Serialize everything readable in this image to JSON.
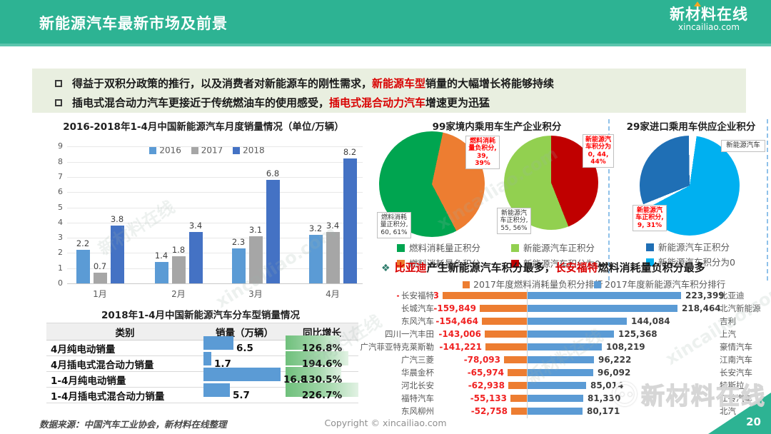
{
  "header": {
    "title": "新能源汽车最新市场及前景",
    "logo_name": "新材料在线",
    "logo_domain": "xincailiao.com"
  },
  "bullets": [
    {
      "pre": "得益于双积分政策的推行，以及消费者对新能源车的刚性需求，",
      "highlight": "新能源车型",
      "post": "销量的大幅增长将能够持续"
    },
    {
      "pre": "插电式混合动力汽车更接近于传统燃油车的使用感受，",
      "highlight": "插电式混合动力汽车",
      "post": "增速更为迅猛"
    }
  ],
  "monthly_chart": {
    "title": "2016-2018年1-4月中国新能源汽车月度销量情况（单位/万辆）",
    "categories": [
      "1月",
      "2月",
      "3月",
      "4月"
    ],
    "series": [
      {
        "name": "2016",
        "color": "#5b9bd5",
        "values": [
          2.2,
          1.4,
          2.3,
          3.2
        ]
      },
      {
        "name": "2017",
        "color": "#a6a6a6",
        "values": [
          0.7,
          1.8,
          3.1,
          3.4
        ]
      },
      {
        "name": "2018",
        "color": "#4472c4",
        "values": [
          3.8,
          3.4,
          6.8,
          8.2
        ]
      }
    ],
    "y_ticks": [
      0,
      1,
      2,
      3,
      4,
      5,
      6,
      7,
      8,
      9
    ]
  },
  "domestic_pies": {
    "title": "99家境内乘用车生产企业积分",
    "fuel_pie": {
      "segments": [
        {
          "label": "燃料消耗量正积分",
          "value": 60,
          "pct": 61,
          "color": "#00a550"
        },
        {
          "label": "燃料消耗量负积分",
          "value": 39,
          "pct": 39,
          "color": "#ed7d31"
        }
      ],
      "callout_neg": "燃料消耗\n量负积分,\n39, 39%",
      "callout_pos": "燃料消耗\n量正积分,\n60, 61%"
    },
    "nev_pie": {
      "segments": [
        {
          "label": "新能源汽车正积分",
          "value": 55,
          "pct": 56,
          "color": "#92d050"
        },
        {
          "label": "新能源汽车积分为0",
          "value": 44,
          "pct": 44,
          "color": "#c00000"
        }
      ],
      "callout_zero": "新能源汽\n车积分为\n0, 44,\n44%",
      "callout_pos": "新能源汽\n车正积分,\n55, 56%"
    },
    "legend": [
      "燃料消耗量正积分",
      "燃料消耗量负积分",
      "新能源汽车正积分",
      "新能源汽车积分为0"
    ]
  },
  "import_pie": {
    "title": "29家进口乘用车供应企业积分",
    "segments": [
      {
        "label": "新能源汽车正积分",
        "value": 9,
        "pct": 31,
        "color": "#1f6fb5"
      },
      {
        "label": "新能源汽车积分为0",
        "pct": 69,
        "color": "#00b0f0"
      }
    ],
    "callout_pos": "新能源汽\n车正积分,\n9, 31%",
    "tag": "新能源汽车",
    "legend": [
      "新能源汽车正积分",
      "新能源汽车积分为0"
    ]
  },
  "type_table": {
    "title": "2018年1-4月中国新能源汽车分车型销量情况",
    "headers": [
      "类别",
      "销量（万辆）",
      "同比增长"
    ],
    "rows": [
      {
        "label": "4月纯电动销量",
        "sales": "6.5",
        "growth": "126.8%"
      },
      {
        "label": "4月插电式混合动力销量",
        "sales": "1.7",
        "growth": "194.6%"
      },
      {
        "label": "1-4月纯电动销量",
        "sales": "16.8",
        "growth": "130.5%"
      },
      {
        "label": "1-4月插电式混合动力销量",
        "sales": "5.7",
        "growth": "226.7%"
      }
    ]
  },
  "headline": {
    "marker": "❖",
    "red1": "比亚迪",
    "mid": "产生新能源汽车积分最多，",
    "red2": "长安福特",
    "post": "燃料消耗量负积分最多"
  },
  "tornado": {
    "legend_left": "2017年度燃料消耗量负积分排行",
    "legend_right": "2017年度新能源汽车积分排行",
    "left_color": "#ed7d31",
    "right_color": "#5b9bd5",
    "rows": [
      {
        "left_label": "长安福特",
        "left_value": "-287,823",
        "right_value": "223,399",
        "right_label": "比亚迪"
      },
      {
        "left_label": "长城汽车",
        "left_value": "-159,849",
        "right_value": "218,464",
        "right_label": "北汽新能源"
      },
      {
        "left_label": "东风汽车",
        "left_value": "-154,464",
        "right_value": "144,084",
        "right_label": "吉利"
      },
      {
        "left_label": "四川一汽丰田",
        "left_value": "-143,006",
        "right_value": "125,368",
        "right_label": "上汽"
      },
      {
        "left_label": "广汽菲亚特克莱斯勒",
        "left_value": "-141,221",
        "right_value": "108,219",
        "right_label": "豪情汽车"
      },
      {
        "left_label": "广汽三菱",
        "left_value": "-78,093",
        "right_value": "96,222",
        "right_label": "江南汽车"
      },
      {
        "left_label": "华晨金杯",
        "left_value": "-65,974",
        "right_value": "96,092",
        "right_label": "长安汽车"
      },
      {
        "left_label": "河北长安",
        "left_value": "-62,938",
        "right_value": "85,014",
        "right_label": "特斯拉"
      },
      {
        "left_label": "福特汽车",
        "left_value": "-55,133",
        "right_value": "81,330",
        "right_label": "江铃汽车"
      },
      {
        "left_label": "东风柳州",
        "left_value": "-52,758",
        "right_value": "80,171",
        "right_label": "北汽"
      }
    ]
  },
  "footer": {
    "source": "数据来源：中国汽车工业协会，新材料在线整理",
    "copyright": "Copyright © xincailiao.com",
    "page": "20"
  },
  "watermark": {
    "name": "新材料在线",
    "domain": "xincailiao.com"
  },
  "colors": {
    "accent_green": "#2db393",
    "highlight_red": "#d90000"
  },
  "chart_data": [
    {
      "type": "bar",
      "title": "2016-2018年1-4月中国新能源汽车月度销量情况（单位/万辆）",
      "categories": [
        "1月",
        "2月",
        "3月",
        "4月"
      ],
      "series": [
        {
          "name": "2016",
          "values": [
            2.2,
            1.4,
            2.3,
            3.2
          ]
        },
        {
          "name": "2017",
          "values": [
            0.7,
            1.8,
            3.1,
            3.4
          ]
        },
        {
          "name": "2018",
          "values": [
            3.8,
            3.4,
            6.8,
            8.2
          ]
        }
      ],
      "ylim": [
        0,
        9
      ],
      "grid": true,
      "legend_position": "top-center"
    },
    {
      "type": "pie",
      "title": "99家境内乘用车生产企业积分（燃料消耗量）",
      "labels": [
        "燃料消耗量正积分",
        "燃料消耗量负积分"
      ],
      "values": [
        60,
        39
      ],
      "pcts": [
        61,
        39
      ]
    },
    {
      "type": "pie",
      "title": "99家境内乘用车生产企业积分（新能源汽车）",
      "labels": [
        "新能源汽车正积分",
        "新能源汽车积分为0"
      ],
      "values": [
        55,
        44
      ],
      "pcts": [
        56,
        44
      ]
    },
    {
      "type": "pie",
      "title": "29家进口乘用车供应企业积分",
      "labels": [
        "新能源汽车正积分",
        "新能源汽车积分为0"
      ],
      "values": [
        9,
        20
      ],
      "pcts": [
        31,
        69
      ]
    },
    {
      "type": "bar",
      "title": "2017年度燃料消耗量负积分排行",
      "categories": [
        "长安福特",
        "长城汽车",
        "东风汽车",
        "四川一汽丰田",
        "广汽菲亚特克莱斯勒",
        "广汽三菱",
        "华晨金杯",
        "河北长安",
        "福特汽车",
        "东风柳州"
      ],
      "values": [
        -287823,
        -159849,
        -154464,
        -143006,
        -141221,
        -78093,
        -65974,
        -62938,
        -55133,
        -52758
      ]
    },
    {
      "type": "bar",
      "title": "2017年度新能源汽车积分排行",
      "categories": [
        "比亚迪",
        "北汽新能源",
        "吉利",
        "上汽",
        "豪情汽车",
        "江南汽车",
        "长安汽车",
        "特斯拉",
        "江铃汽车",
        "北汽"
      ],
      "values": [
        223399,
        218464,
        144084,
        125368,
        108219,
        96222,
        96092,
        85014,
        81330,
        80171
      ]
    },
    {
      "type": "table",
      "title": "2018年1-4月中国新能源汽车分车型销量情况",
      "columns": [
        "类别",
        "销量（万辆）",
        "同比增长"
      ],
      "rows": [
        [
          "4月纯电动销量",
          6.5,
          "126.8%"
        ],
        [
          "4月插电式混合动力销量",
          1.7,
          "194.6%"
        ],
        [
          "1-4月纯电动销量",
          16.8,
          "130.5%"
        ],
        [
          "1-4月插电式混合动力销量",
          5.7,
          "226.7%"
        ]
      ]
    }
  ]
}
